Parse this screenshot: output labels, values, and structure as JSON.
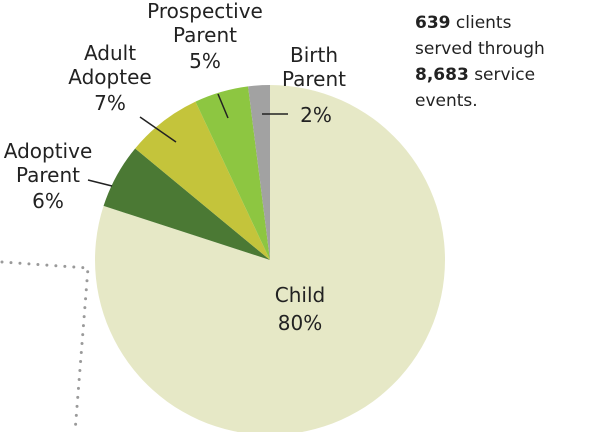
{
  "chart_data": {
    "type": "pie",
    "categories": [
      "Child",
      "Adoptive Parent",
      "Adult Adoptee",
      "Prospective Parent",
      "Birth Parent"
    ],
    "values": [
      80,
      6,
      7,
      5,
      2
    ],
    "value_labels": [
      "80%",
      "6%",
      "7%",
      "5%",
      "2%"
    ],
    "colors": [
      "#e6e8c6",
      "#4b7934",
      "#c4c43b",
      "#8dc641",
      "#a2a2a2"
    ],
    "annotation": {
      "clients": "639",
      "clients_text": "clients",
      "served_text": "served through",
      "events": "8,683",
      "events_text": "service",
      "end_text": "events."
    }
  }
}
